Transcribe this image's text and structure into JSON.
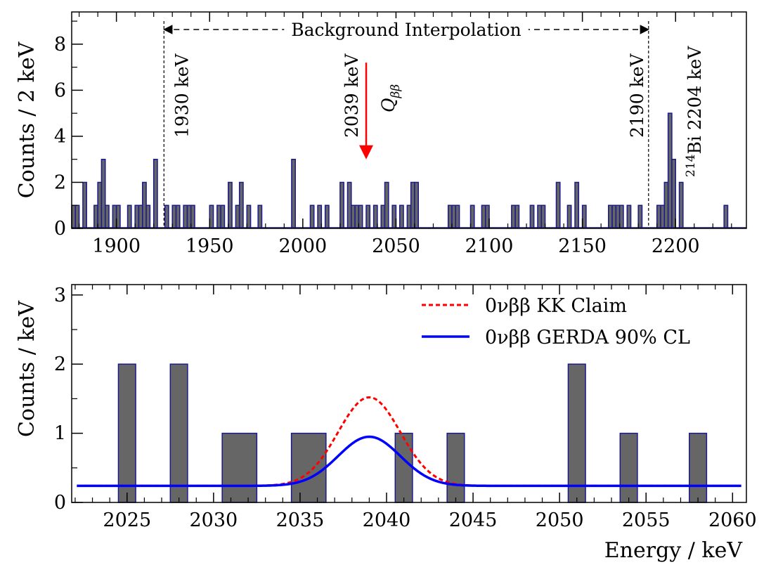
{
  "chart_data": [
    {
      "type": "bar",
      "ylabel": "Counts / 2 keV",
      "xlim": [
        1876,
        2238
      ],
      "ylim": [
        0,
        9.4
      ],
      "xticks": [
        "1900",
        "1950",
        "2000",
        "2050",
        "2100",
        "2150",
        "2200"
      ],
      "yticks": [
        "0",
        "2",
        "4",
        "6",
        "8"
      ],
      "bin_width": 2,
      "bins": [
        {
          "x": 1877,
          "count": 1
        },
        {
          "x": 1879,
          "count": 1
        },
        {
          "x": 1883,
          "count": 2
        },
        {
          "x": 1889,
          "count": 1
        },
        {
          "x": 1891,
          "count": 2
        },
        {
          "x": 1893,
          "count": 3
        },
        {
          "x": 1895,
          "count": 1
        },
        {
          "x": 1899,
          "count": 1
        },
        {
          "x": 1901,
          "count": 1
        },
        {
          "x": 1907,
          "count": 1
        },
        {
          "x": 1911,
          "count": 1
        },
        {
          "x": 1913,
          "count": 1
        },
        {
          "x": 1915,
          "count": 2
        },
        {
          "x": 1917,
          "count": 1
        },
        {
          "x": 1921,
          "count": 3
        },
        {
          "x": 1927,
          "count": 1
        },
        {
          "x": 1931,
          "count": 1
        },
        {
          "x": 1933,
          "count": 1
        },
        {
          "x": 1937,
          "count": 1
        },
        {
          "x": 1939,
          "count": 1
        },
        {
          "x": 1941,
          "count": 1
        },
        {
          "x": 1951,
          "count": 1
        },
        {
          "x": 1955,
          "count": 1
        },
        {
          "x": 1957,
          "count": 1
        },
        {
          "x": 1961,
          "count": 2
        },
        {
          "x": 1965,
          "count": 1
        },
        {
          "x": 1967,
          "count": 2
        },
        {
          "x": 1971,
          "count": 1
        },
        {
          "x": 1977,
          "count": 1
        },
        {
          "x": 1995,
          "count": 3
        },
        {
          "x": 2005,
          "count": 1
        },
        {
          "x": 2009,
          "count": 1
        },
        {
          "x": 2013,
          "count": 1
        },
        {
          "x": 2021,
          "count": 2
        },
        {
          "x": 2025,
          "count": 2
        },
        {
          "x": 2027,
          "count": 1
        },
        {
          "x": 2029,
          "count": 1
        },
        {
          "x": 2031,
          "count": 1
        },
        {
          "x": 2035,
          "count": 1
        },
        {
          "x": 2039,
          "count": 1
        },
        {
          "x": 2043,
          "count": 1
        },
        {
          "x": 2045,
          "count": 2
        },
        {
          "x": 2049,
          "count": 1
        },
        {
          "x": 2053,
          "count": 1
        },
        {
          "x": 2057,
          "count": 1
        },
        {
          "x": 2059,
          "count": 2
        },
        {
          "x": 2061,
          "count": 2
        },
        {
          "x": 2079,
          "count": 1
        },
        {
          "x": 2081,
          "count": 1
        },
        {
          "x": 2083,
          "count": 1
        },
        {
          "x": 2091,
          "count": 1
        },
        {
          "x": 2097,
          "count": 1
        },
        {
          "x": 2099,
          "count": 1
        },
        {
          "x": 2113,
          "count": 1
        },
        {
          "x": 2115,
          "count": 1
        },
        {
          "x": 2123,
          "count": 1
        },
        {
          "x": 2127,
          "count": 1
        },
        {
          "x": 2129,
          "count": 1
        },
        {
          "x": 2137,
          "count": 2
        },
        {
          "x": 2143,
          "count": 1
        },
        {
          "x": 2147,
          "count": 2
        },
        {
          "x": 2151,
          "count": 1
        },
        {
          "x": 2165,
          "count": 1
        },
        {
          "x": 2167,
          "count": 1
        },
        {
          "x": 2169,
          "count": 1
        },
        {
          "x": 2171,
          "count": 1
        },
        {
          "x": 2175,
          "count": 1
        },
        {
          "x": 2181,
          "count": 1
        },
        {
          "x": 2191,
          "count": 1
        },
        {
          "x": 2193,
          "count": 1
        },
        {
          "x": 2195,
          "count": 2
        },
        {
          "x": 2197,
          "count": 5
        },
        {
          "x": 2199,
          "count": 3
        },
        {
          "x": 2203,
          "count": 2
        },
        {
          "x": 2227,
          "count": 1
        }
      ],
      "background_window": {
        "from": 1925.5,
        "to": 2185.5,
        "label": "Background Interpolation"
      },
      "annotations": [
        {
          "text": "1930 keV",
          "x": 1925.5
        },
        {
          "text": "2190 keV",
          "x": 2185.5
        },
        {
          "text": "2039 keV",
          "x": 2034
        },
        {
          "text": "Q",
          "subscript": "ββ",
          "x": 2034,
          "arrow_from_y": 7.2,
          "arrow_to_y": 3.0
        },
        {
          "text": "214",
          "text2": "Bi 2204 keV",
          "x": 2201
        }
      ],
      "colors": {
        "bar_fill": "#666666",
        "bar_edge": "#1a1a8c",
        "arrow": "#ff0000"
      }
    },
    {
      "type": "bar",
      "xlabel": "Energy / keV",
      "ylabel": "Counts / keV",
      "xlim": [
        2021.8,
        2060.8
      ],
      "ylim": [
        0,
        3.15
      ],
      "xticks": [
        "2025",
        "2030",
        "2035",
        "2040",
        "2045",
        "2050",
        "2055",
        "2060"
      ],
      "yticks": [
        "0",
        "1",
        "2",
        "3"
      ],
      "bars": [
        {
          "from": 2024.5,
          "to": 2025.5,
          "count": 2
        },
        {
          "from": 2027.5,
          "to": 2028.5,
          "count": 2
        },
        {
          "from": 2030.5,
          "to": 2032.5,
          "count": 1
        },
        {
          "from": 2034.5,
          "to": 2036.5,
          "count": 1
        },
        {
          "from": 2040.5,
          "to": 2041.5,
          "count": 1
        },
        {
          "from": 2043.5,
          "to": 2044.5,
          "count": 1
        },
        {
          "from": 2050.5,
          "to": 2051.5,
          "count": 2
        },
        {
          "from": 2053.5,
          "to": 2054.5,
          "count": 1
        },
        {
          "from": 2057.5,
          "to": 2058.5,
          "count": 1
        }
      ],
      "series": [
        {
          "name": "0νββ KK Claim",
          "style": "dashed",
          "color": "#ff0000",
          "background": 0.24,
          "peak_center": 2039,
          "peak_height": 1.28,
          "sigma": 1.8
        },
        {
          "name": "0νββ GERDA 90% CL",
          "style": "solid",
          "color": "#0000ff",
          "background": 0.24,
          "peak_center": 2039,
          "peak_height": 0.71,
          "sigma": 1.8
        }
      ],
      "legend": "top-right",
      "colors": {
        "bar_fill": "#666666",
        "bar_edge": "#1a1a8c"
      }
    }
  ]
}
